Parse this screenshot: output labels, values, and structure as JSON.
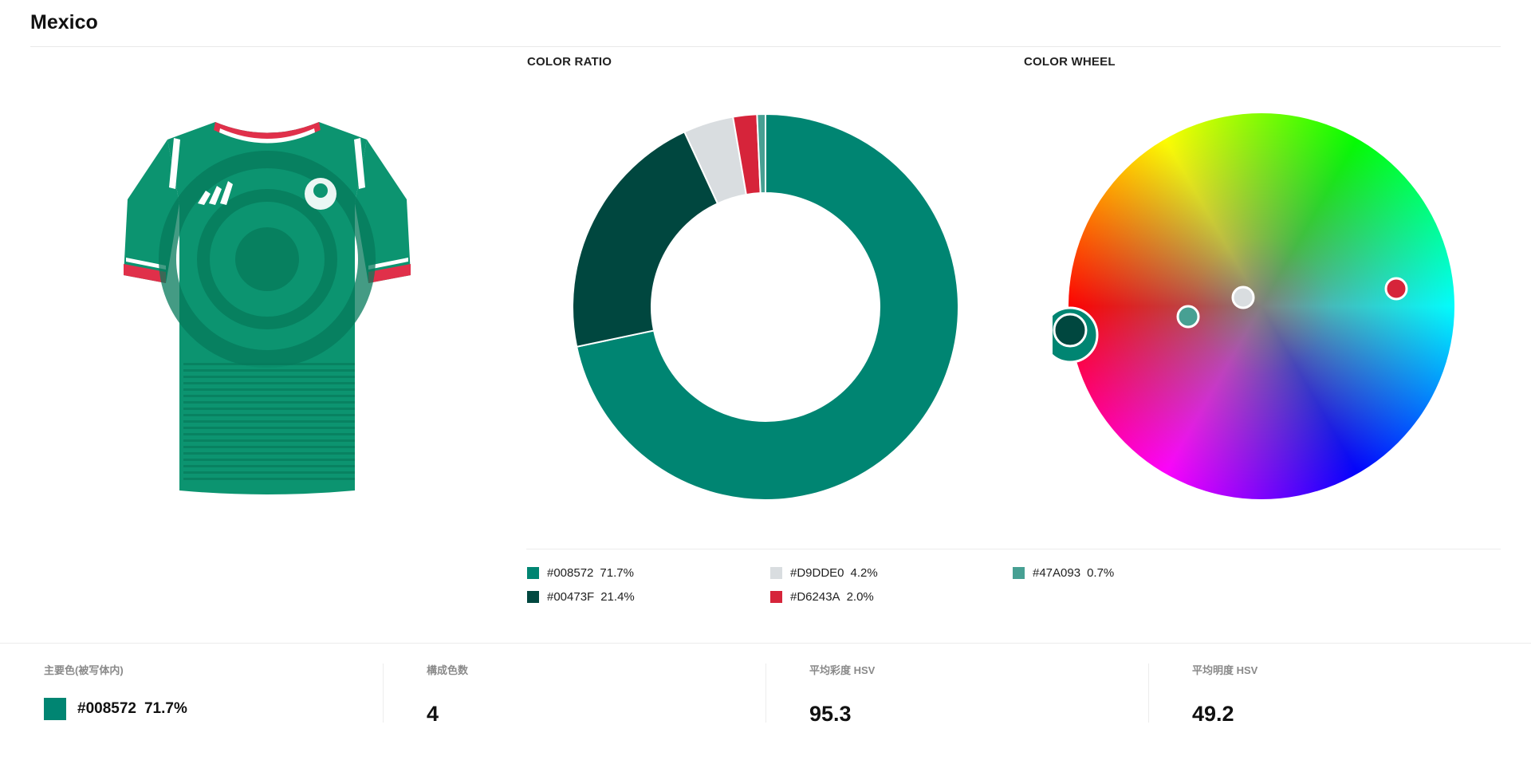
{
  "title": "Mexico",
  "sections": {
    "color_ratio_label": "COLOR RATIO",
    "color_wheel_label": "COLOR WHEEL"
  },
  "product": {
    "icon": "jersey-image",
    "colors": {
      "body": "#0C9470",
      "pattern": "#067A5B",
      "collar_red": "#E0304A",
      "white": "#FFFFFF"
    }
  },
  "chart_data": {
    "type": "pie",
    "donut": true,
    "title": "",
    "categories": [
      "#008572",
      "#00473F",
      "#D9DDE0",
      "#D6243A",
      "#47A093"
    ],
    "values": [
      71.7,
      21.4,
      4.2,
      2.0,
      0.7
    ],
    "colors": [
      "#008572",
      "#00473F",
      "#D9DDE0",
      "#D6243A",
      "#47A093"
    ]
  },
  "legend": [
    {
      "hex": "#008572",
      "pct": "71.7%",
      "color": "#008572"
    },
    {
      "hex": "#00473F",
      "pct": "21.4%",
      "color": "#00473F"
    },
    {
      "hex": "#D9DDE0",
      "pct": "4.2%",
      "color": "#D9DDE0"
    },
    {
      "hex": "#D6243A",
      "pct": "2.0%",
      "color": "#D6243A"
    },
    {
      "hex": "#47A093",
      "pct": "0.7%",
      "color": "#47A093"
    }
  ],
  "wheel": {
    "markers": [
      {
        "name": "#008572",
        "color": "#008572",
        "dominant": true
      },
      {
        "name": "#47A093",
        "color": "#47A093"
      },
      {
        "name": "#D9DDE0",
        "color": "#D9DDE0"
      },
      {
        "name": "#D6243A",
        "color": "#D6243A"
      }
    ]
  },
  "stats": {
    "main_color_label": "主要色(被写体内)",
    "main_color_hex": "#008572",
    "main_color_pct": "71.7%",
    "main_color_swatch": "#008572",
    "count_label": "構成色数",
    "count_value": "4",
    "saturation_label": "平均彩度 HSV",
    "saturation_value": "95.3",
    "brightness_label": "平均明度 HSV",
    "brightness_value": "49.2"
  }
}
